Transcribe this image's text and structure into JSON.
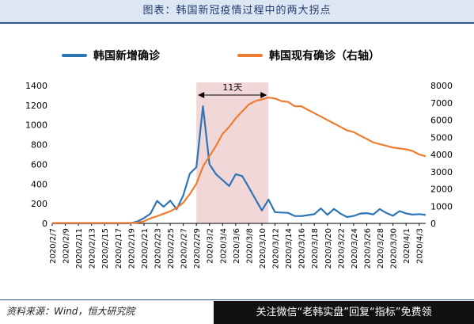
{
  "title": "图表：韩国新冠疫情过程中的两大拐点",
  "source": "资料来源：Wind，恒大研究院",
  "cta": "关注微信“老韩实盘”回复“指标”免费领",
  "colors": {
    "series1": "#2e75b6",
    "series2": "#ed7d31",
    "shade": "#f2d7d9",
    "title_bg": "#dde6f3"
  },
  "chart_data": {
    "type": "line",
    "annotation": {
      "label": "11天",
      "start": "2020/2/29",
      "end": "2020/3/11"
    },
    "y_left": {
      "min": 0,
      "max": 1400,
      "ticks": [
        0,
        200,
        400,
        600,
        800,
        1000,
        1200,
        1400
      ]
    },
    "y_right": {
      "min": 0,
      "max": 8000,
      "ticks": [
        0,
        1000,
        2000,
        3000,
        4000,
        5000,
        6000,
        7000,
        8000
      ]
    },
    "x_tick_labels": [
      "2020/2/7",
      "2020/2/9",
      "2020/2/11",
      "2020/2/13",
      "2020/2/15",
      "2020/2/17",
      "2020/2/19",
      "2020/2/21",
      "2020/2/23",
      "2020/2/25",
      "2020/2/27",
      "2020/2/29",
      "2020/3/2",
      "2020/3/4",
      "2020/3/6",
      "2020/3/8",
      "2020/3/10",
      "2020/3/12",
      "2020/3/14",
      "2020/3/16",
      "2020/3/18",
      "2020/3/20",
      "2020/3/22",
      "2020/3/24",
      "2020/3/26",
      "2020/3/28",
      "2020/3/30",
      "2020/4/1",
      "2020/4/3"
    ],
    "x": [
      "2020/2/7",
      "2020/2/8",
      "2020/2/9",
      "2020/2/10",
      "2020/2/11",
      "2020/2/12",
      "2020/2/13",
      "2020/2/14",
      "2020/2/15",
      "2020/2/16",
      "2020/2/17",
      "2020/2/18",
      "2020/2/19",
      "2020/2/20",
      "2020/2/21",
      "2020/2/22",
      "2020/2/23",
      "2020/2/24",
      "2020/2/25",
      "2020/2/26",
      "2020/2/27",
      "2020/2/28",
      "2020/2/29",
      "2020/3/1",
      "2020/3/2",
      "2020/3/3",
      "2020/3/4",
      "2020/3/5",
      "2020/3/6",
      "2020/3/7",
      "2020/3/8",
      "2020/3/9",
      "2020/3/10",
      "2020/3/11",
      "2020/3/12",
      "2020/3/13",
      "2020/3/14",
      "2020/3/15",
      "2020/3/16",
      "2020/3/17",
      "2020/3/18",
      "2020/3/19",
      "2020/3/20",
      "2020/3/21",
      "2020/3/22",
      "2020/3/23",
      "2020/3/24",
      "2020/3/25",
      "2020/3/26",
      "2020/3/27",
      "2020/3/28",
      "2020/3/29",
      "2020/3/30",
      "2020/3/31",
      "2020/4/1",
      "2020/4/2",
      "2020/4/3",
      "2020/4/4"
    ],
    "series": [
      {
        "name": "韩国新增确诊",
        "axis": "left",
        "values": [
          0,
          0,
          0,
          0,
          0,
          0,
          0,
          0,
          0,
          0,
          0,
          0,
          2,
          20,
          53,
          100,
          229,
          169,
          231,
          144,
          284,
          505,
          571,
          1190,
          600,
          500,
          440,
          380,
          500,
          480,
          367,
          248,
          131,
          242,
          114,
          110,
          107,
          76,
          74,
          84,
          93,
          152,
          87,
          147,
          98,
          64,
          76,
          100,
          104,
          91,
          146,
          105,
          78,
          125,
          101,
          89,
          94,
          86
        ]
      },
      {
        "name": "韩国现有确诊（右轴）",
        "axis": "right",
        "values": [
          25,
          25,
          25,
          25,
          25,
          25,
          25,
          25,
          25,
          25,
          25,
          25,
          30,
          40,
          120,
          300,
          420,
          560,
          700,
          900,
          1200,
          1700,
          2300,
          3300,
          3900,
          4500,
          5200,
          5600,
          6100,
          6500,
          6900,
          7100,
          7200,
          7300,
          7250,
          7100,
          7050,
          6800,
          6800,
          6600,
          6400,
          6200,
          6000,
          5800,
          5600,
          5400,
          5300,
          5100,
          4900,
          4700,
          4600,
          4500,
          4400,
          4350,
          4300,
          4200,
          4000,
          3900
        ]
      }
    ]
  }
}
